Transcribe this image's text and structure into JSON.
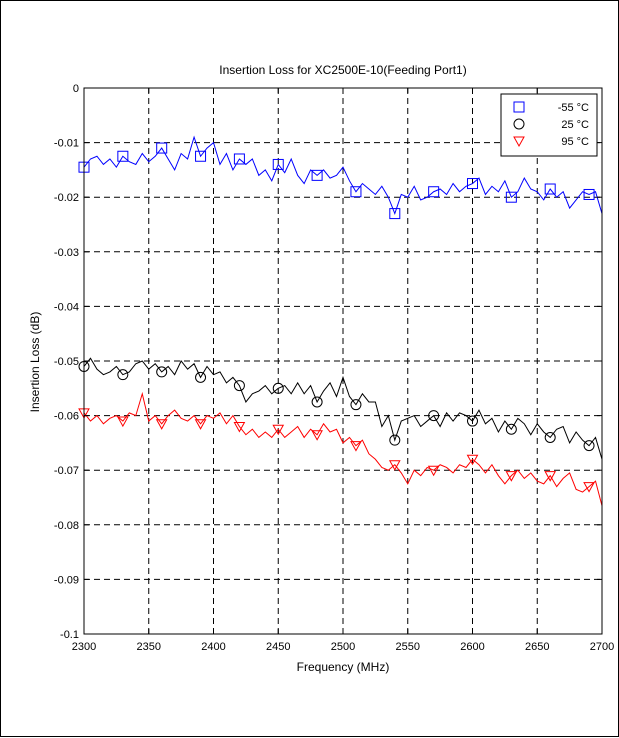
{
  "chart_data": {
    "type": "line",
    "title": "Insertion Loss for XC2500E-10(Feeding Port1)",
    "xlabel": "Frequency (MHz)",
    "ylabel": "Insertion Loss (dB)",
    "xlim": [
      2300,
      2700
    ],
    "ylim": [
      -0.1,
      0
    ],
    "xticks": [
      2300,
      2350,
      2400,
      2450,
      2500,
      2550,
      2600,
      2650,
      2700
    ],
    "xtick_labels": [
      "2300",
      "2350",
      "2400",
      "2450",
      "2500",
      "2550",
      "2600",
      "2650",
      "2700"
    ],
    "yticks": [
      0,
      -0.01,
      -0.02,
      -0.03,
      -0.04,
      -0.05,
      -0.06,
      -0.07,
      -0.08,
      -0.09,
      -0.1
    ],
    "ytick_labels": [
      "0",
      "-0.01",
      "-0.02",
      "-0.03",
      "-0.04",
      "-0.05",
      "-0.06",
      "-0.07",
      "-0.08",
      "-0.09",
      "-0.1"
    ],
    "grid": true,
    "legend_position": "top-right",
    "series": [
      {
        "name": "-55 °C",
        "color": "#0000ff",
        "marker": "square",
        "marker_every": 6,
        "x": [
          2300,
          2305,
          2310,
          2315,
          2320,
          2325,
          2330,
          2335,
          2340,
          2345,
          2350,
          2355,
          2360,
          2365,
          2370,
          2375,
          2380,
          2385,
          2390,
          2395,
          2400,
          2405,
          2410,
          2415,
          2420,
          2425,
          2430,
          2435,
          2440,
          2445,
          2450,
          2455,
          2460,
          2465,
          2470,
          2475,
          2480,
          2485,
          2490,
          2495,
          2500,
          2505,
          2510,
          2515,
          2520,
          2525,
          2530,
          2535,
          2540,
          2545,
          2550,
          2555,
          2560,
          2565,
          2570,
          2575,
          2580,
          2585,
          2590,
          2595,
          2600,
          2605,
          2610,
          2615,
          2620,
          2625,
          2630,
          2635,
          2640,
          2645,
          2650,
          2655,
          2660,
          2665,
          2670,
          2675,
          2680,
          2685,
          2690,
          2695,
          2700
        ],
        "y": [
          -0.0145,
          -0.013,
          -0.0125,
          -0.014,
          -0.013,
          -0.0145,
          -0.0125,
          -0.0135,
          -0.014,
          -0.012,
          -0.0135,
          -0.0125,
          -0.011,
          -0.013,
          -0.015,
          -0.012,
          -0.013,
          -0.009,
          -0.0125,
          -0.011,
          -0.01,
          -0.014,
          -0.012,
          -0.015,
          -0.013,
          -0.014,
          -0.013,
          -0.016,
          -0.015,
          -0.017,
          -0.014,
          -0.0155,
          -0.013,
          -0.016,
          -0.0175,
          -0.015,
          -0.016,
          -0.015,
          -0.0165,
          -0.016,
          -0.0145,
          -0.017,
          -0.019,
          -0.0175,
          -0.0185,
          -0.0195,
          -0.018,
          -0.02,
          -0.023,
          -0.0195,
          -0.02,
          -0.018,
          -0.0205,
          -0.02,
          -0.019,
          -0.0185,
          -0.0195,
          -0.0175,
          -0.019,
          -0.018,
          -0.0175,
          -0.0165,
          -0.0195,
          -0.018,
          -0.019,
          -0.017,
          -0.02,
          -0.019,
          -0.0165,
          -0.0185,
          -0.019,
          -0.0205,
          -0.0185,
          -0.02,
          -0.019,
          -0.022,
          -0.0205,
          -0.019,
          -0.0195,
          -0.019,
          -0.023
        ]
      },
      {
        "name": "25 °C",
        "color": "#000000",
        "marker": "circle",
        "marker_every": 6,
        "x": [
          2300,
          2305,
          2310,
          2315,
          2320,
          2325,
          2330,
          2335,
          2340,
          2345,
          2350,
          2355,
          2360,
          2365,
          2370,
          2375,
          2380,
          2385,
          2390,
          2395,
          2400,
          2405,
          2410,
          2415,
          2420,
          2425,
          2430,
          2435,
          2440,
          2445,
          2450,
          2455,
          2460,
          2465,
          2470,
          2475,
          2480,
          2485,
          2490,
          2495,
          2500,
          2505,
          2510,
          2515,
          2520,
          2525,
          2530,
          2535,
          2540,
          2545,
          2550,
          2555,
          2560,
          2565,
          2570,
          2575,
          2580,
          2585,
          2590,
          2595,
          2600,
          2605,
          2610,
          2615,
          2620,
          2625,
          2630,
          2635,
          2640,
          2645,
          2650,
          2655,
          2660,
          2665,
          2670,
          2675,
          2680,
          2685,
          2690,
          2695,
          2700
        ],
        "y": [
          -0.051,
          -0.0495,
          -0.0515,
          -0.0525,
          -0.052,
          -0.051,
          -0.0525,
          -0.052,
          -0.0505,
          -0.05,
          -0.0515,
          -0.0505,
          -0.052,
          -0.051,
          -0.0525,
          -0.05,
          -0.0515,
          -0.0505,
          -0.053,
          -0.051,
          -0.0525,
          -0.052,
          -0.054,
          -0.053,
          -0.0545,
          -0.0575,
          -0.056,
          -0.0555,
          -0.0545,
          -0.056,
          -0.055,
          -0.0545,
          -0.056,
          -0.054,
          -0.056,
          -0.0545,
          -0.0575,
          -0.0555,
          -0.054,
          -0.0565,
          -0.053,
          -0.0565,
          -0.058,
          -0.056,
          -0.0575,
          -0.0575,
          -0.062,
          -0.06,
          -0.0645,
          -0.061,
          -0.0605,
          -0.06,
          -0.062,
          -0.061,
          -0.06,
          -0.062,
          -0.0595,
          -0.061,
          -0.0595,
          -0.06,
          -0.061,
          -0.059,
          -0.0615,
          -0.0605,
          -0.063,
          -0.061,
          -0.0625,
          -0.0605,
          -0.0615,
          -0.0635,
          -0.0615,
          -0.063,
          -0.064,
          -0.0625,
          -0.062,
          -0.065,
          -0.063,
          -0.0645,
          -0.0655,
          -0.064,
          -0.068
        ]
      },
      {
        "name": "95 °C",
        "color": "#ff0000",
        "marker": "triangle-down",
        "marker_every": 6,
        "x": [
          2300,
          2305,
          2310,
          2315,
          2320,
          2325,
          2330,
          2335,
          2340,
          2345,
          2350,
          2355,
          2360,
          2365,
          2370,
          2375,
          2380,
          2385,
          2390,
          2395,
          2400,
          2405,
          2410,
          2415,
          2420,
          2425,
          2430,
          2435,
          2440,
          2445,
          2450,
          2455,
          2460,
          2465,
          2470,
          2475,
          2480,
          2485,
          2490,
          2495,
          2500,
          2505,
          2510,
          2515,
          2520,
          2525,
          2530,
          2535,
          2540,
          2545,
          2550,
          2555,
          2560,
          2565,
          2570,
          2575,
          2580,
          2585,
          2590,
          2595,
          2600,
          2605,
          2610,
          2615,
          2620,
          2625,
          2630,
          2635,
          2640,
          2645,
          2650,
          2655,
          2660,
          2665,
          2670,
          2675,
          2680,
          2685,
          2690,
          2695,
          2700
        ],
        "y": [
          -0.0595,
          -0.061,
          -0.06,
          -0.0615,
          -0.0605,
          -0.06,
          -0.061,
          -0.0595,
          -0.06,
          -0.056,
          -0.061,
          -0.06,
          -0.0615,
          -0.06,
          -0.059,
          -0.0605,
          -0.061,
          -0.06,
          -0.0615,
          -0.06,
          -0.0605,
          -0.0595,
          -0.0615,
          -0.06,
          -0.062,
          -0.0635,
          -0.0625,
          -0.064,
          -0.063,
          -0.064,
          -0.0625,
          -0.064,
          -0.063,
          -0.062,
          -0.064,
          -0.0625,
          -0.0635,
          -0.0615,
          -0.063,
          -0.0625,
          -0.065,
          -0.064,
          -0.0655,
          -0.0645,
          -0.067,
          -0.068,
          -0.0695,
          -0.07,
          -0.069,
          -0.0705,
          -0.0725,
          -0.07,
          -0.071,
          -0.0695,
          -0.07,
          -0.069,
          -0.0695,
          -0.0705,
          -0.069,
          -0.0695,
          -0.068,
          -0.069,
          -0.0705,
          -0.069,
          -0.071,
          -0.0725,
          -0.071,
          -0.07,
          -0.0715,
          -0.0705,
          -0.072,
          -0.0725,
          -0.071,
          -0.073,
          -0.0715,
          -0.0705,
          -0.0735,
          -0.074,
          -0.073,
          -0.072,
          -0.0765
        ]
      }
    ]
  }
}
